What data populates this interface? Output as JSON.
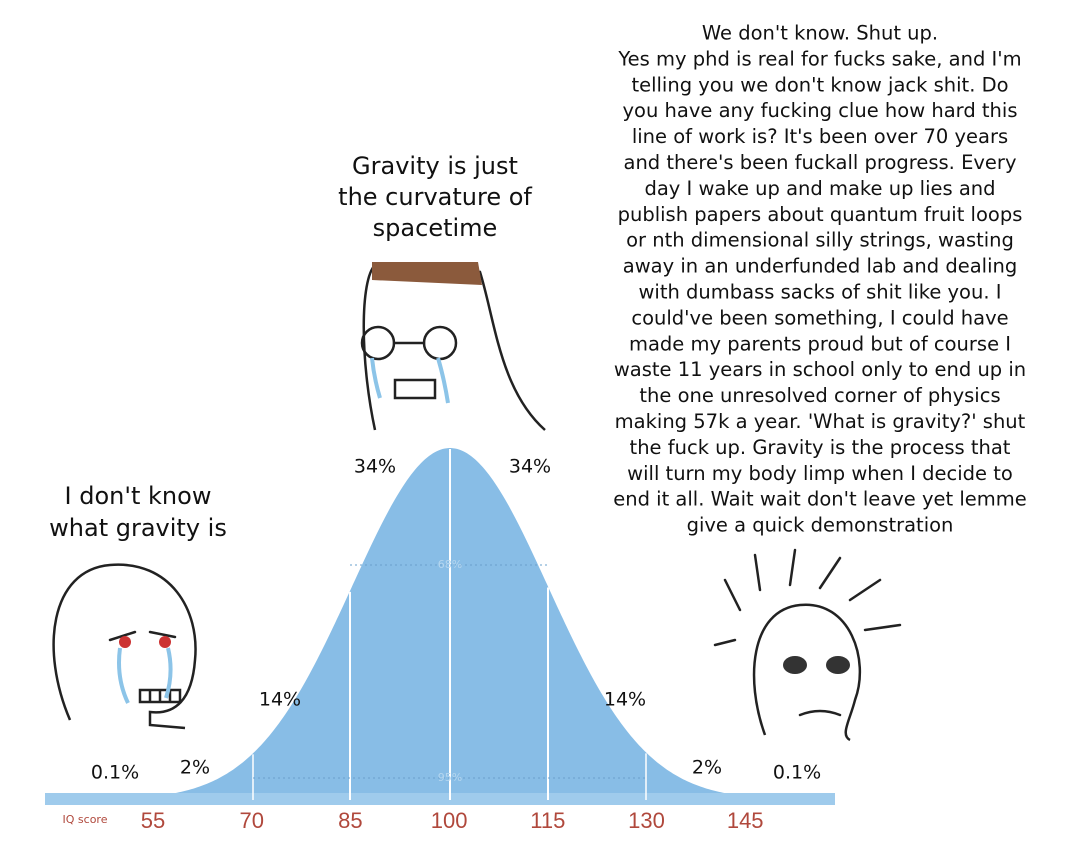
{
  "left_caption": [
    "I don't know",
    "what gravity is"
  ],
  "middle_caption": [
    "Gravity is just",
    "the curvature of",
    "spacetime"
  ],
  "right_caption": [
    "We don't know. Shut up.",
    "Yes my phd is real for fucks sake, and I'm",
    "telling you we don't know jack shit. Do",
    "you have any fucking clue how hard this",
    "line of work is? It's been over 70 years",
    "and there's been fuckall progress. Every",
    "day I wake up and make up lies and",
    "publish papers about quantum fruit loops",
    "or nth dimensional silly strings, wasting",
    "away in an underfunded lab and dealing",
    "with dumbass sacks of shit like you. I",
    "could've been something, I could have",
    "made my parents proud but of course I",
    "waste 11 years in school only to end up in",
    "the one unresolved corner of physics",
    "making 57k a year. 'What is gravity?' shut",
    "the fuck up. Gravity is the process that",
    "will turn my body limp when I decide to",
    "end it all. Wait wait don't leave yet lemme",
    "give a quick demonstration"
  ],
  "curve": {
    "percent_labels": [
      "0.1%",
      "2%",
      "14%",
      "34%",
      "34%",
      "14%",
      "2%",
      "0.1%"
    ],
    "inner_labels": [
      "68%",
      "95%"
    ],
    "axis_label": "IQ score",
    "scores": [
      "55",
      "70",
      "85",
      "100",
      "115",
      "130",
      "145"
    ]
  }
}
